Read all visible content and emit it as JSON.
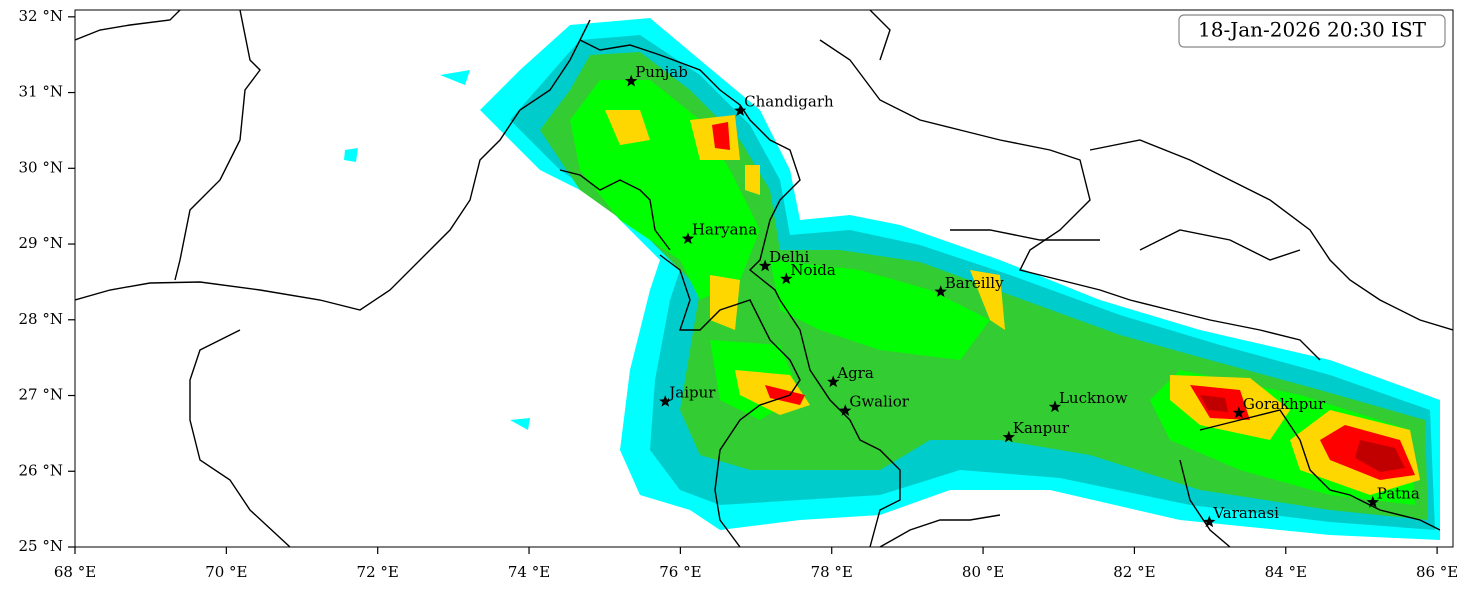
{
  "timestamp": "18-Jan-2026 20:30 IST",
  "map": {
    "xlim": [
      68,
      86.21
    ],
    "ylim": [
      25,
      32.09
    ],
    "xticks": [
      {
        "value": 68,
        "label": "68 °E"
      },
      {
        "value": 70,
        "label": "70 °E"
      },
      {
        "value": 72,
        "label": "72 °E"
      },
      {
        "value": 74,
        "label": "74 °E"
      },
      {
        "value": 76,
        "label": "76 °E"
      },
      {
        "value": 78,
        "label": "78 °E"
      },
      {
        "value": 80,
        "label": "80 °E"
      },
      {
        "value": 82,
        "label": "82 °E"
      },
      {
        "value": 84,
        "label": "84 °E"
      },
      {
        "value": 86,
        "label": "86 °E"
      }
    ],
    "yticks": [
      {
        "value": 25,
        "label": "25 °N"
      },
      {
        "value": 26,
        "label": "26 °N"
      },
      {
        "value": 27,
        "label": "27 °N"
      },
      {
        "value": 28,
        "label": "28 °N"
      },
      {
        "value": 29,
        "label": "29 °N"
      },
      {
        "value": 30,
        "label": "30 °N"
      },
      {
        "value": 31,
        "label": "31 °N"
      },
      {
        "value": 32,
        "label": "32 °N"
      }
    ],
    "cities": [
      {
        "name": "Punjab",
        "lon": 75.35,
        "lat": 31.15
      },
      {
        "name": "Chandigarh",
        "lon": 76.79,
        "lat": 30.76
      },
      {
        "name": "Haryana",
        "lon": 76.1,
        "lat": 29.07
      },
      {
        "name": "Delhi",
        "lon": 77.12,
        "lat": 28.71
      },
      {
        "name": "Noida",
        "lon": 77.4,
        "lat": 28.54
      },
      {
        "name": "Bareilly",
        "lon": 79.44,
        "lat": 28.37
      },
      {
        "name": "Agra",
        "lon": 78.02,
        "lat": 27.18
      },
      {
        "name": "Gwalior",
        "lon": 78.18,
        "lat": 26.8
      },
      {
        "name": "Jaipur",
        "lon": 75.8,
        "lat": 26.92
      },
      {
        "name": "Lucknow",
        "lon": 80.95,
        "lat": 26.85
      },
      {
        "name": "Kanpur",
        "lon": 80.34,
        "lat": 26.45
      },
      {
        "name": "Gorakhpur",
        "lon": 83.38,
        "lat": 26.77
      },
      {
        "name": "Varanasi",
        "lon": 82.99,
        "lat": 25.33
      },
      {
        "name": "Patna",
        "lon": 85.15,
        "lat": 25.59
      }
    ]
  }
}
